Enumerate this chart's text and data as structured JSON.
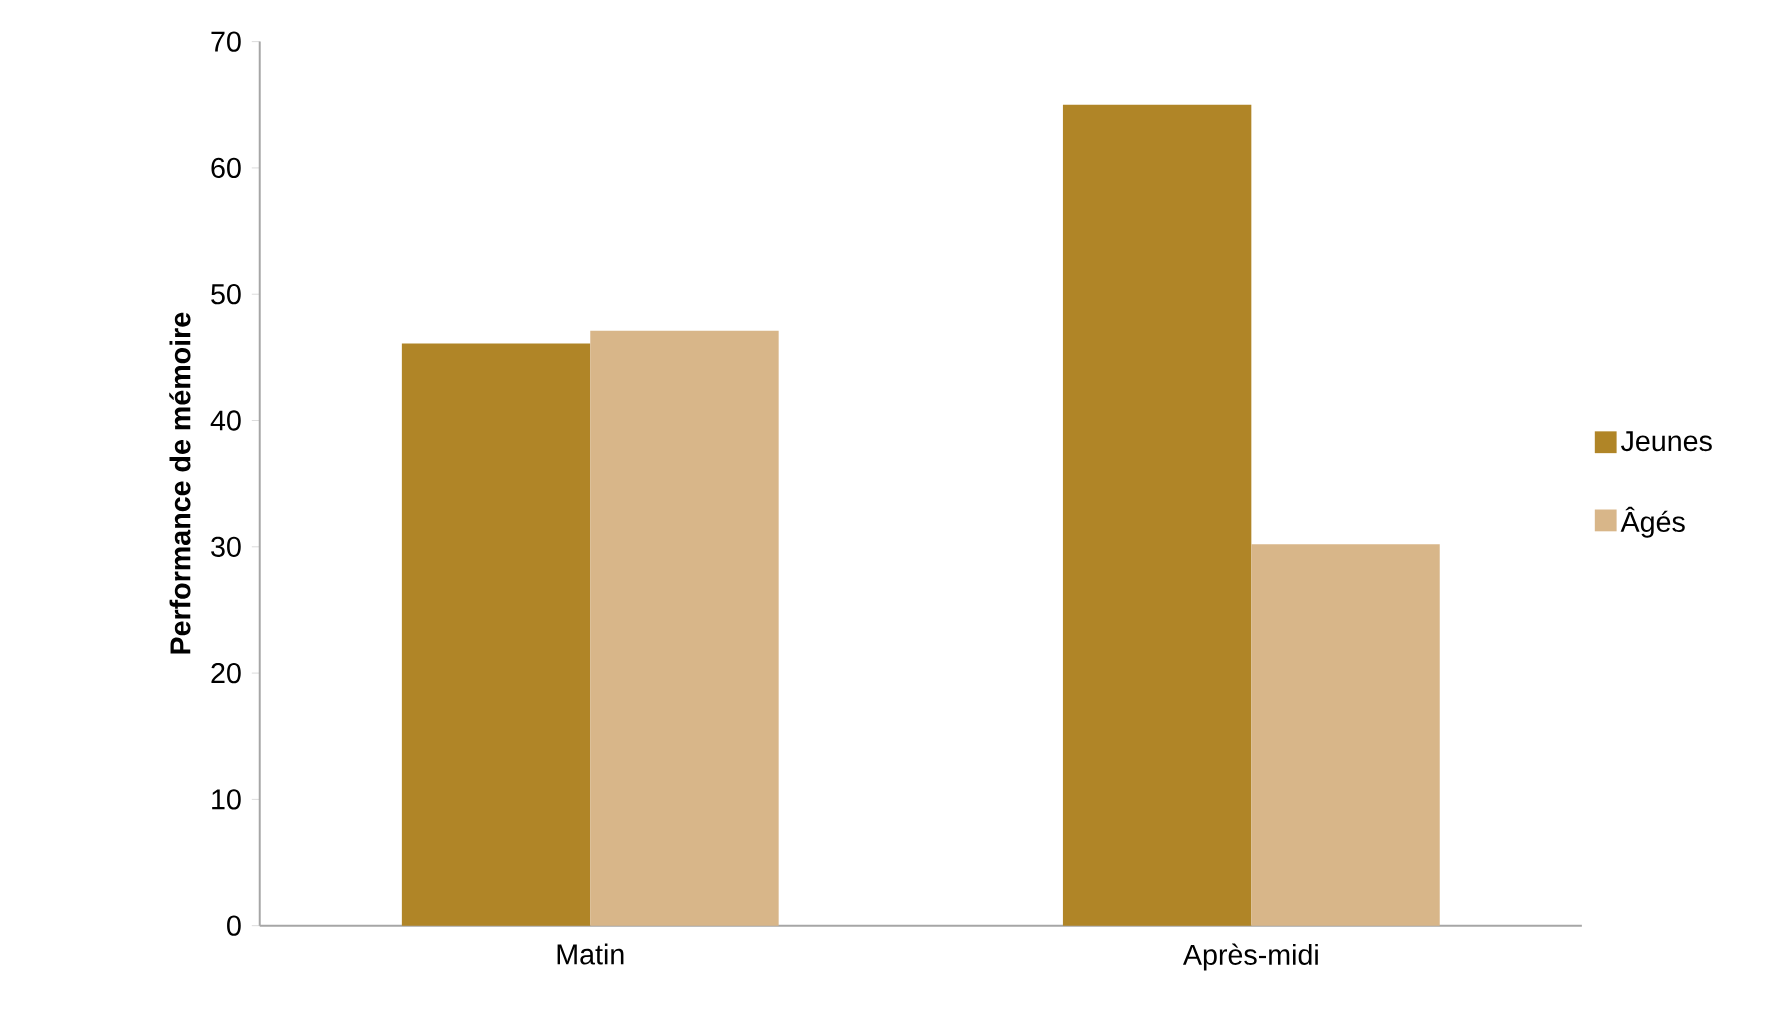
{
  "chart_data": {
    "type": "bar",
    "ylabel": "Performance de mémoire",
    "categories": [
      "Matin",
      "Après-midi"
    ],
    "series": [
      {
        "name": "Jeunes",
        "color": "#b08527",
        "values": [
          46.1,
          65
        ]
      },
      {
        "name": "Âgés",
        "color": "#d8b689",
        "values": [
          47.1,
          30.2
        ]
      }
    ],
    "ylim": [
      0,
      70
    ],
    "yticks": [
      0,
      10,
      20,
      30,
      40,
      50,
      60,
      70
    ],
    "grid": false,
    "legend": "right"
  }
}
